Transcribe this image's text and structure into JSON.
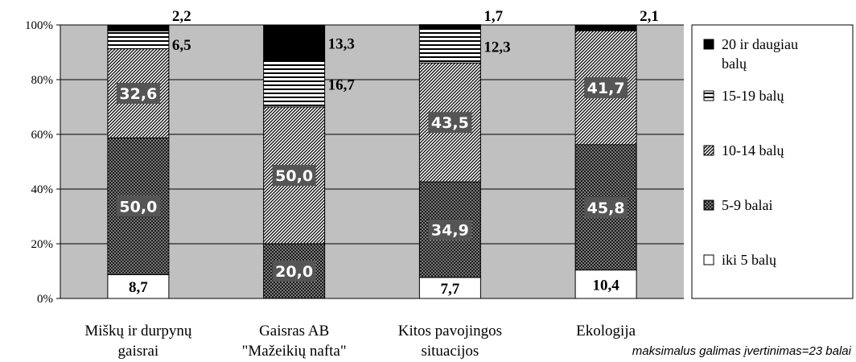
{
  "footnote": "maksimalus galimas įvertinimas=23 balai",
  "chart_data": {
    "type": "bar",
    "stacked": true,
    "percent": true,
    "ylim": [
      0,
      100
    ],
    "yticks": [
      "0%",
      "20%",
      "40%",
      "60%",
      "80%",
      "100%"
    ],
    "grid": true,
    "legend_position": "right",
    "categories": [
      [
        "Miškų ir durpynų",
        "gaisrai"
      ],
      [
        "Gaisras AB",
        "\"Mažeikių nafta\""
      ],
      [
        "Kitos pavojingos",
        "situacijos"
      ],
      [
        "Ekologija"
      ]
    ],
    "series": [
      {
        "name": "iki 5 balų",
        "values": [
          8.7,
          0,
          7.7,
          10.4
        ],
        "labels": [
          "8,7",
          "",
          "7,7",
          "10,4"
        ],
        "pattern": "white",
        "color": "#ffffff"
      },
      {
        "name": "5-9 balai",
        "values": [
          50.0,
          20.0,
          34.9,
          45.8
        ],
        "labels": [
          "50,0",
          "20,0",
          "34,9",
          "45,8"
        ],
        "pattern": "dots",
        "color": "#1a1a1a"
      },
      {
        "name": "10-14 balų",
        "values": [
          32.6,
          50.0,
          43.5,
          41.7
        ],
        "labels": [
          "32,6",
          "50,0",
          "43,5",
          "41,7"
        ],
        "pattern": "diagonal",
        "color": "#555555"
      },
      {
        "name": "15-19 balų",
        "values": [
          6.5,
          16.7,
          12.3,
          0
        ],
        "labels": [
          "6,5",
          "16,7",
          "12,3",
          ""
        ],
        "pattern": "horizontal",
        "color": "#000000"
      },
      {
        "name": "20 ir daugiau balų",
        "values": [
          2.2,
          13.3,
          1.7,
          2.1
        ],
        "labels": [
          "2,2",
          "13,3",
          "1,7",
          "2,1"
        ],
        "pattern": "solid",
        "color": "#000000"
      }
    ],
    "legend_order": [
      [
        "20 ir daugiau",
        "balų"
      ],
      [
        "15-19 balų"
      ],
      [
        "10-14 balų"
      ],
      [
        "5-9 balai"
      ],
      [
        "iki 5 balų"
      ]
    ],
    "colors": {
      "plot_background": "#c0c0c0",
      "label_box": "#555555"
    }
  }
}
